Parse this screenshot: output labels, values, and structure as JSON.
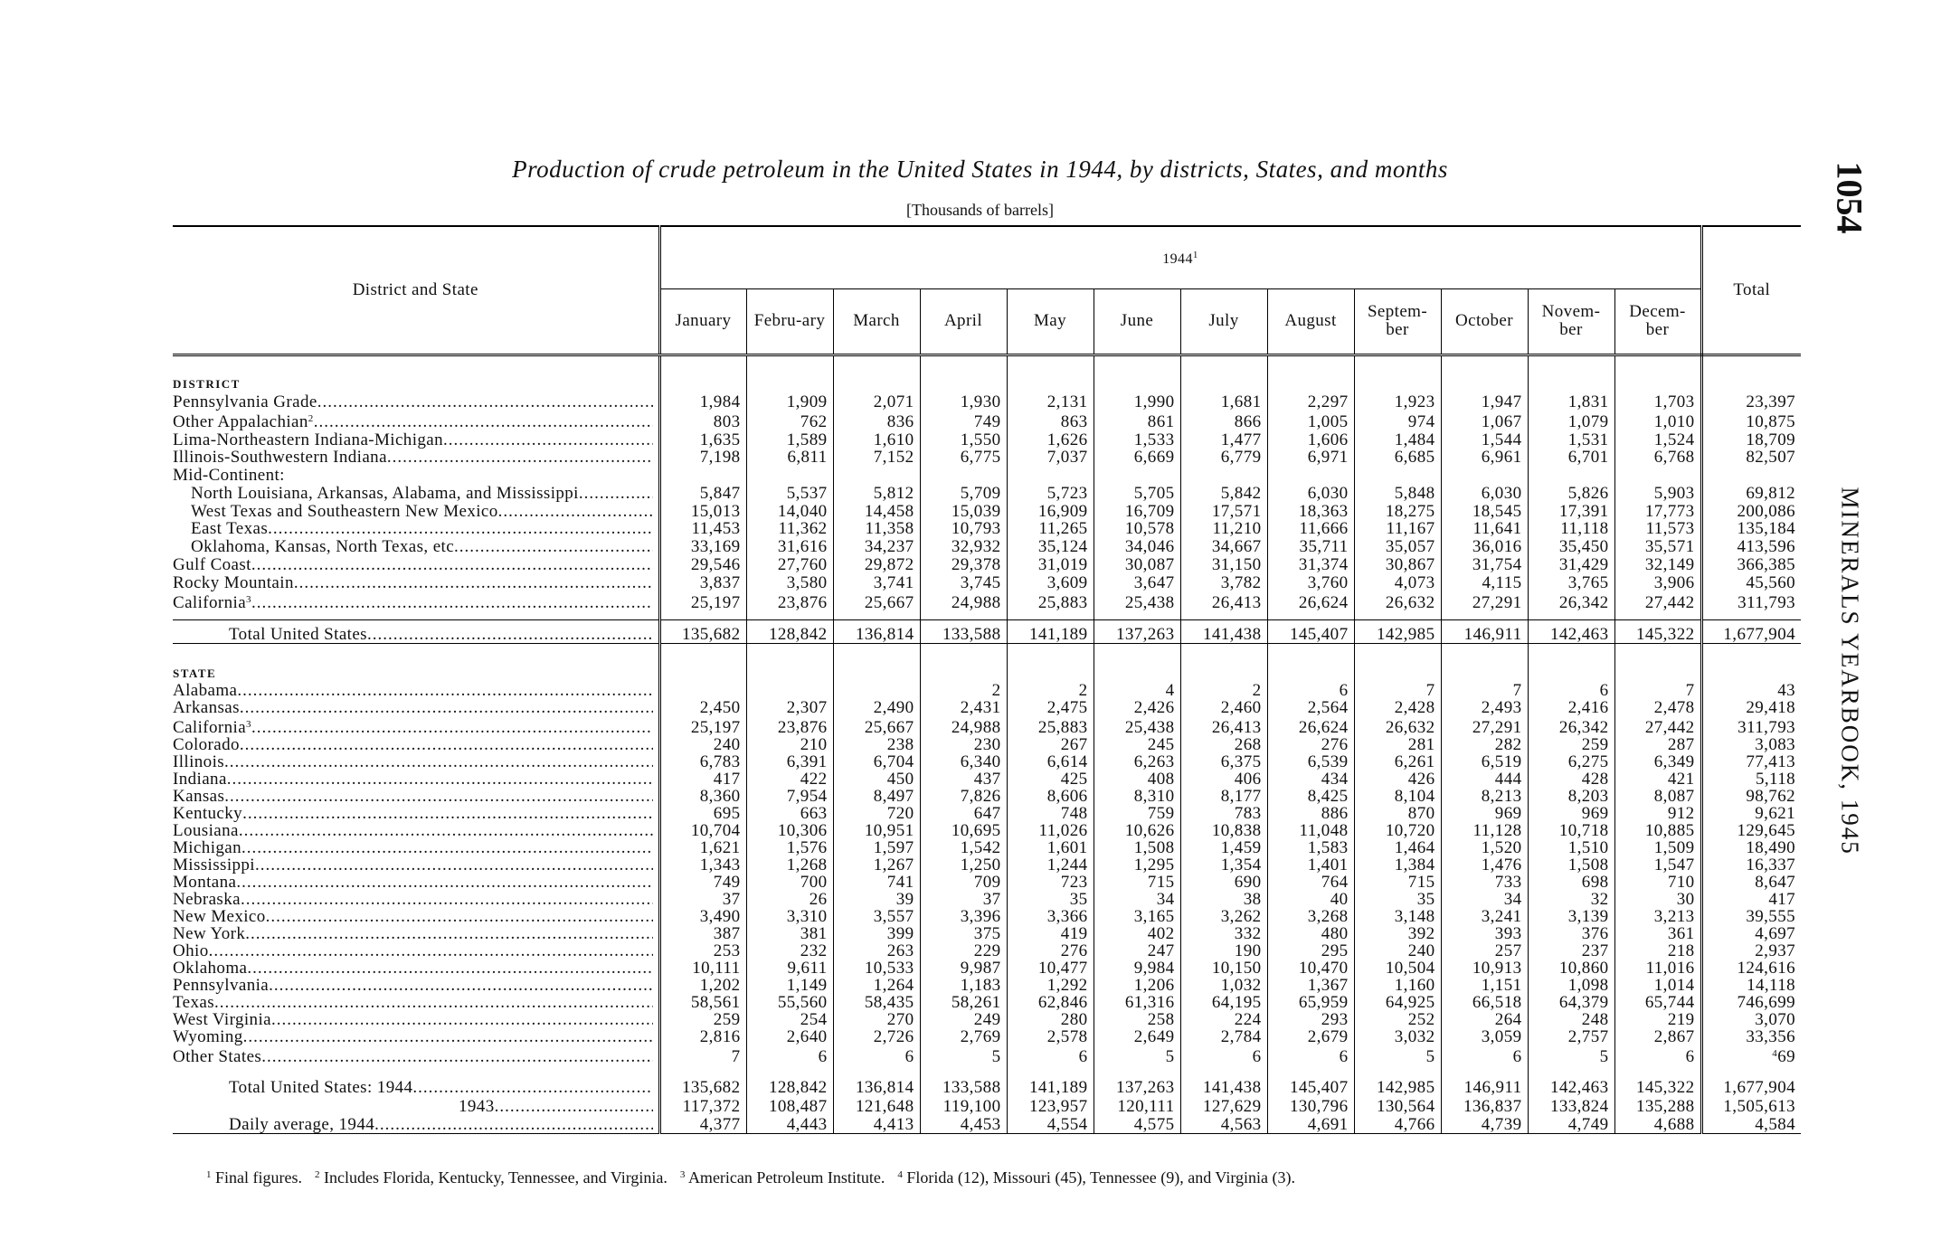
{
  "page_number": "1054",
  "running_head": "MINERALS YEARBOOK, 1945",
  "title": "Production of crude petroleum in the United States in 1944, by districts, States, and months",
  "subtitle": "[Thousands of barrels]",
  "table": {
    "stub_header": "District and State",
    "year_header": "1944",
    "year_note": "1",
    "months": [
      "January",
      "Febru-ary",
      "March",
      "April",
      "May",
      "June",
      "July",
      "August",
      "Septem-ber",
      "October",
      "Novem-ber",
      "Decem-ber"
    ],
    "total_header": "Total",
    "sections": [
      {
        "heading": "DISTRICT",
        "rows": [
          {
            "label": "Pennsylvania Grade",
            "values": [
              "1,984",
              "1,909",
              "2,071",
              "1,930",
              "2,131",
              "1,990",
              "1,681",
              "2,297",
              "1,923",
              "1,947",
              "1,831",
              "1,703"
            ],
            "total": "23,397"
          },
          {
            "label": "Other Appalachian",
            "note": "2",
            "values": [
              "803",
              "762",
              "836",
              "749",
              "863",
              "861",
              "866",
              "1,005",
              "974",
              "1,067",
              "1,079",
              "1,010"
            ],
            "total": "10,875"
          },
          {
            "label": "Lima-Northeastern Indiana-Michigan",
            "values": [
              "1,635",
              "1,589",
              "1,610",
              "1,550",
              "1,626",
              "1,533",
              "1,477",
              "1,606",
              "1,484",
              "1,544",
              "1,531",
              "1,524"
            ],
            "total": "18,709"
          },
          {
            "label": "Illinois-Southwestern Indiana",
            "values": [
              "7,198",
              "6,811",
              "7,152",
              "6,775",
              "7,037",
              "6,669",
              "6,779",
              "6,971",
              "6,685",
              "6,961",
              "6,701",
              "6,768"
            ],
            "total": "82,507"
          },
          {
            "label": "Mid-Continent:",
            "rows": [
              {
                "label": "North Louisiana, Arkansas, Alabama, and Mississippi",
                "values": [
                  "5,847",
                  "5,537",
                  "5,812",
                  "5,709",
                  "5,723",
                  "5,705",
                  "5,842",
                  "6,030",
                  "5,848",
                  "6,030",
                  "5,826",
                  "5,903"
                ],
                "total": "69,812"
              },
              {
                "label": "West Texas and Southeastern New Mexico",
                "values": [
                  "15,013",
                  "14,040",
                  "14,458",
                  "15,039",
                  "16,909",
                  "16,709",
                  "17,571",
                  "18,363",
                  "18,275",
                  "18,545",
                  "17,391",
                  "17,773"
                ],
                "total": "200,086"
              },
              {
                "label": "East Texas",
                "values": [
                  "11,453",
                  "11,362",
                  "11,358",
                  "10,793",
                  "11,265",
                  "10,578",
                  "11,210",
                  "11,666",
                  "11,167",
                  "11,641",
                  "11,118",
                  "11,573"
                ],
                "total": "135,184"
              },
              {
                "label": "Oklahoma, Kansas, North Texas, etc",
                "values": [
                  "33,169",
                  "31,616",
                  "34,237",
                  "32,932",
                  "35,124",
                  "34,046",
                  "34,667",
                  "35,711",
                  "35,057",
                  "36,016",
                  "35,450",
                  "35,571"
                ],
                "total": "413,596"
              }
            ]
          },
          {
            "label": "Gulf Coast",
            "values": [
              "29,546",
              "27,760",
              "29,872",
              "29,378",
              "31,019",
              "30,087",
              "31,150",
              "31,374",
              "30,867",
              "31,754",
              "31,429",
              "32,149"
            ],
            "total": "366,385"
          },
          {
            "label": "Rocky Mountain",
            "values": [
              "3,837",
              "3,580",
              "3,741",
              "3,745",
              "3,609",
              "3,647",
              "3,782",
              "3,760",
              "4,073",
              "4,115",
              "3,765",
              "3,906"
            ],
            "total": "45,560"
          },
          {
            "label": "California",
            "note": "3",
            "values": [
              "25,197",
              "23,876",
              "25,667",
              "24,988",
              "25,883",
              "25,438",
              "26,413",
              "26,624",
              "26,632",
              "27,291",
              "26,342",
              "27,442"
            ],
            "total": "311,793"
          }
        ],
        "total_row": {
          "label": "Total United States",
          "values": [
            "135,682",
            "128,842",
            "136,814",
            "133,588",
            "141,189",
            "137,263",
            "141,438",
            "145,407",
            "142,985",
            "146,911",
            "142,463",
            "145,322"
          ],
          "total": "1,677,904"
        }
      },
      {
        "heading": "STATE",
        "rows": [
          {
            "label": "Alabama",
            "values": [
              null,
              null,
              null,
              "2",
              "2",
              "4",
              "2",
              "6",
              "7",
              "7",
              "6",
              "7"
            ],
            "total": "43"
          },
          {
            "label": "Arkansas",
            "values": [
              "2,450",
              "2,307",
              "2,490",
              "2,431",
              "2,475",
              "2,426",
              "2,460",
              "2,564",
              "2,428",
              "2,493",
              "2,416",
              "2,478"
            ],
            "total": "29,418"
          },
          {
            "label": "California",
            "note": "3",
            "values": [
              "25,197",
              "23,876",
              "25,667",
              "24,988",
              "25,883",
              "25,438",
              "26,413",
              "26,624",
              "26,632",
              "27,291",
              "26,342",
              "27,442"
            ],
            "total": "311,793"
          },
          {
            "label": "Colorado",
            "values": [
              "240",
              "210",
              "238",
              "230",
              "267",
              "245",
              "268",
              "276",
              "281",
              "282",
              "259",
              "287"
            ],
            "total": "3,083"
          },
          {
            "label": "Illinois",
            "values": [
              "6,783",
              "6,391",
              "6,704",
              "6,340",
              "6,614",
              "6,263",
              "6,375",
              "6,539",
              "6,261",
              "6,519",
              "6,275",
              "6,349"
            ],
            "total": "77,413"
          },
          {
            "label": "Indiana",
            "values": [
              "417",
              "422",
              "450",
              "437",
              "425",
              "408",
              "406",
              "434",
              "426",
              "444",
              "428",
              "421"
            ],
            "total": "5,118"
          },
          {
            "label": "Kansas",
            "values": [
              "8,360",
              "7,954",
              "8,497",
              "7,826",
              "8,606",
              "8,310",
              "8,177",
              "8,425",
              "8,104",
              "8,213",
              "8,203",
              "8,087"
            ],
            "total": "98,762"
          },
          {
            "label": "Kentucky",
            "values": [
              "695",
              "663",
              "720",
              "647",
              "748",
              "759",
              "783",
              "886",
              "870",
              "969",
              "969",
              "912"
            ],
            "total": "9,621"
          },
          {
            "label": "Lousiana",
            "values": [
              "10,704",
              "10,306",
              "10,951",
              "10,695",
              "11,026",
              "10,626",
              "10,838",
              "11,048",
              "10,720",
              "11,128",
              "10,718",
              "10,885"
            ],
            "total": "129,645"
          },
          {
            "label": "Michigan",
            "values": [
              "1,621",
              "1,576",
              "1,597",
              "1,542",
              "1,601",
              "1,508",
              "1,459",
              "1,583",
              "1,464",
              "1,520",
              "1,510",
              "1,509"
            ],
            "total": "18,490"
          },
          {
            "label": "Mississippi",
            "values": [
              "1,343",
              "1,268",
              "1,267",
              "1,250",
              "1,244",
              "1,295",
              "1,354",
              "1,401",
              "1,384",
              "1,476",
              "1,508",
              "1,547"
            ],
            "total": "16,337"
          },
          {
            "label": "Montana",
            "values": [
              "749",
              "700",
              "741",
              "709",
              "723",
              "715",
              "690",
              "764",
              "715",
              "733",
              "698",
              "710"
            ],
            "total": "8,647"
          },
          {
            "label": "Nebraska",
            "values": [
              "37",
              "26",
              "39",
              "37",
              "35",
              "34",
              "38",
              "40",
              "35",
              "34",
              "32",
              "30"
            ],
            "total": "417"
          },
          {
            "label": "New Mexico",
            "values": [
              "3,490",
              "3,310",
              "3,557",
              "3,396",
              "3,366",
              "3,165",
              "3,262",
              "3,268",
              "3,148",
              "3,241",
              "3,139",
              "3,213"
            ],
            "total": "39,555"
          },
          {
            "label": "New York",
            "values": [
              "387",
              "381",
              "399",
              "375",
              "419",
              "402",
              "332",
              "480",
              "392",
              "393",
              "376",
              "361"
            ],
            "total": "4,697"
          },
          {
            "label": "Ohio",
            "values": [
              "253",
              "232",
              "263",
              "229",
              "276",
              "247",
              "190",
              "295",
              "240",
              "257",
              "237",
              "218"
            ],
            "total": "2,937"
          },
          {
            "label": "Oklahoma",
            "values": [
              "10,111",
              "9,611",
              "10,533",
              "9,987",
              "10,477",
              "9,984",
              "10,150",
              "10,470",
              "10,504",
              "10,913",
              "10,860",
              "11,016"
            ],
            "total": "124,616"
          },
          {
            "label": "Pennsylvania",
            "values": [
              "1,202",
              "1,149",
              "1,264",
              "1,183",
              "1,292",
              "1,206",
              "1,032",
              "1,367",
              "1,160",
              "1,151",
              "1,098",
              "1,014"
            ],
            "total": "14,118"
          },
          {
            "label": "Texas",
            "values": [
              "58,561",
              "55,560",
              "58,435",
              "58,261",
              "62,846",
              "61,316",
              "64,195",
              "65,959",
              "64,925",
              "66,518",
              "64,379",
              "65,744"
            ],
            "total": "746,699"
          },
          {
            "label": "West Virginia",
            "values": [
              "259",
              "254",
              "270",
              "249",
              "280",
              "258",
              "224",
              "293",
              "252",
              "264",
              "248",
              "219"
            ],
            "total": "3,070"
          },
          {
            "label": "Wyoming",
            "values": [
              "2,816",
              "2,640",
              "2,726",
              "2,769",
              "2,578",
              "2,649",
              "2,784",
              "2,679",
              "3,032",
              "3,059",
              "2,757",
              "2,867"
            ],
            "total": "33,356"
          },
          {
            "label": "Other States",
            "values": [
              "7",
              "6",
              "6",
              "5",
              "6",
              "5",
              "6",
              "6",
              "5",
              "6",
              "5",
              "6"
            ],
            "total": "69",
            "total_note": "4"
          }
        ],
        "totals": [
          {
            "label": "Total United States: 1944",
            "values": [
              "135,682",
              "128,842",
              "136,814",
              "133,588",
              "141,189",
              "137,263",
              "141,438",
              "145,407",
              "142,985",
              "146,911",
              "142,463",
              "145,322"
            ],
            "total": "1,677,904"
          },
          {
            "label": "1943",
            "values": [
              "117,372",
              "108,487",
              "121,648",
              "119,100",
              "123,957",
              "120,111",
              "127,629",
              "130,796",
              "130,564",
              "136,837",
              "133,824",
              "135,288"
            ],
            "total": "1,505,613"
          },
          {
            "label": "Daily average, 1944",
            "values": [
              "4,377",
              "4,443",
              "4,413",
              "4,453",
              "4,554",
              "4,575",
              "4,563",
              "4,691",
              "4,766",
              "4,739",
              "4,749",
              "4,688"
            ],
            "total": "4,584"
          }
        ]
      }
    ]
  },
  "footnotes": [
    {
      "mark": "1",
      "text": "Final figures."
    },
    {
      "mark": "2",
      "text": "Includes Florida, Kentucky, Tennessee, and Virginia."
    },
    {
      "mark": "3",
      "text": "American Petroleum Institute."
    },
    {
      "mark": "4",
      "text": "Florida (12), Missouri (45), Tennessee (9), and Virginia (3)."
    }
  ]
}
